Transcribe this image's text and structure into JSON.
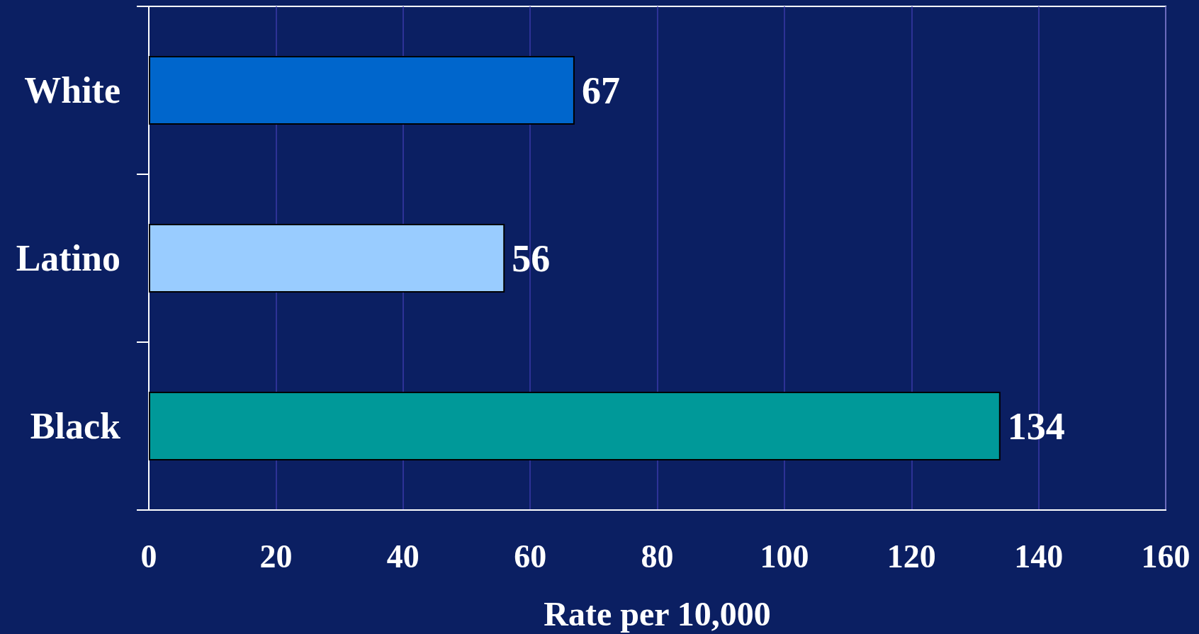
{
  "chart_data": {
    "type": "bar",
    "orientation": "horizontal",
    "categories": [
      "White",
      "Latino",
      "Black"
    ],
    "values": [
      67,
      56,
      134
    ],
    "colors": [
      "#0066cc",
      "#99ccff",
      "#009999"
    ],
    "xlabel": "Rate per 10,000",
    "xlim": [
      0,
      160
    ],
    "xticks": [
      0,
      20,
      40,
      60,
      80,
      100,
      120,
      140,
      160
    ],
    "grid": "x",
    "data_labels": true
  }
}
